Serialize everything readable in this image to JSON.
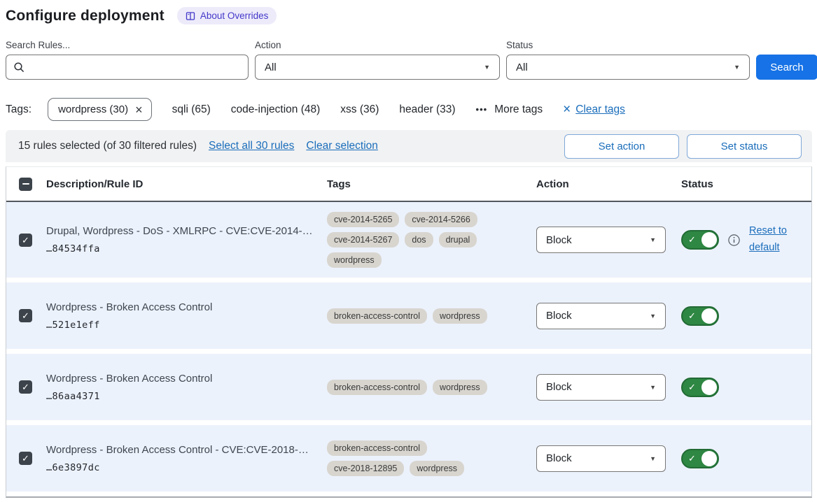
{
  "page": {
    "title": "Configure deployment",
    "about_badge": "About Overrides"
  },
  "filters": {
    "search_label": "Search Rules...",
    "search_value": "",
    "action_label": "Action",
    "action_value": "All",
    "status_label": "Status",
    "status_value": "All",
    "search_button": "Search"
  },
  "tags_bar": {
    "label": "Tags:",
    "selected_tag": {
      "label": "wordpress (30)",
      "remove": "×"
    },
    "tags": [
      "sqli (65)",
      "code-injection (48)",
      "xss (36)",
      "header (33)"
    ],
    "more_tags_icon": "•••",
    "more_tags": "More tags",
    "clear_tags_icon": "×",
    "clear_tags": "Clear tags"
  },
  "selection_bar": {
    "summary": "15 rules selected (of 30 filtered rules)",
    "select_all": "Select all 30 rules",
    "clear_selection": "Clear selection",
    "set_action": "Set action",
    "set_status": "Set status"
  },
  "table": {
    "headers": {
      "description": "Description/Rule ID",
      "tags": "Tags",
      "action": "Action",
      "status": "Status"
    },
    "rows": [
      {
        "description": "Drupal, Wordpress - DoS - XMLRPC - CVE:CVE-2014-…",
        "rule_id": "…84534ffa",
        "tags": [
          "cve-2014-5265",
          "cve-2014-5266",
          "cve-2014-5267",
          "dos",
          "drupal",
          "wordpress"
        ],
        "action": "Block",
        "selected": true,
        "status_on": true,
        "has_reset": true,
        "reset_label": "Reset to default"
      },
      {
        "description": "Wordpress - Broken Access Control",
        "rule_id": "…521e1eff",
        "tags": [
          "broken-access-control",
          "wordpress"
        ],
        "action": "Block",
        "selected": true,
        "status_on": true,
        "has_reset": false,
        "reset_label": ""
      },
      {
        "description": "Wordpress - Broken Access Control",
        "rule_id": "…86aa4371",
        "tags": [
          "broken-access-control",
          "wordpress"
        ],
        "action": "Block",
        "selected": true,
        "status_on": true,
        "has_reset": false,
        "reset_label": ""
      },
      {
        "description": "Wordpress - Broken Access Control - CVE:CVE-2018-…",
        "rule_id": "…6e3897dc",
        "tags": [
          "broken-access-control",
          "cve-2018-12895",
          "wordpress"
        ],
        "action": "Block",
        "selected": true,
        "status_on": true,
        "has_reset": false,
        "reset_label": ""
      }
    ]
  },
  "colors": {
    "primary_blue": "#1672e6",
    "link_blue": "#1a6dbb",
    "toggle_green": "#2e8742",
    "badge_bg": "#edebfa",
    "badge_text": "#4338ca",
    "selected_row_bg": "#ecf2fc",
    "tag_pill_bg": "#d8d5cf",
    "checkbox_bg": "#3c434a"
  }
}
